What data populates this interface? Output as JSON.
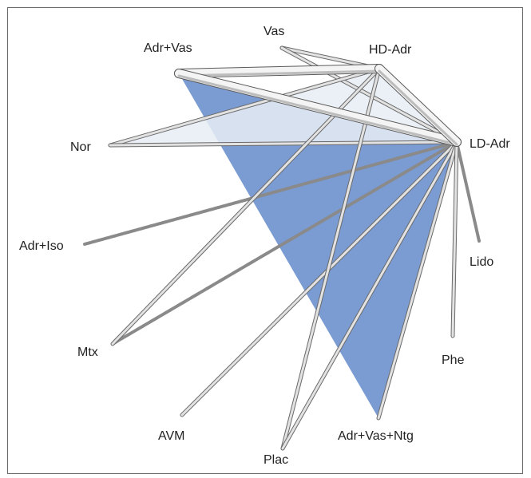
{
  "diagram": {
    "type": "network-meta-analysis-graph",
    "nodes": [
      {
        "id": "LD-Adr",
        "label": "LD-Adr"
      },
      {
        "id": "HD-Adr",
        "label": "HD-Adr"
      },
      {
        "id": "Vas",
        "label": "Vas"
      },
      {
        "id": "Adr+Vas",
        "label": "Adr+Vas"
      },
      {
        "id": "Nor",
        "label": "Nor"
      },
      {
        "id": "Adr+Iso",
        "label": "Adr+Iso"
      },
      {
        "id": "Mtx",
        "label": "Mtx"
      },
      {
        "id": "AVM",
        "label": "AVM"
      },
      {
        "id": "Plac",
        "label": "Plac"
      },
      {
        "id": "Adr+Vas+Ntg",
        "label": "Adr+Vas+Ntg"
      },
      {
        "id": "Phe",
        "label": "Phe"
      },
      {
        "id": "Lido",
        "label": "Lido"
      }
    ],
    "edges": [
      {
        "from": "Adr+Vas",
        "to": "HD-Adr",
        "weight": "thick"
      },
      {
        "from": "Adr+Vas",
        "to": "LD-Adr",
        "weight": "thick"
      },
      {
        "from": "HD-Adr",
        "to": "LD-Adr",
        "weight": "thick"
      },
      {
        "from": "Vas",
        "to": "HD-Adr",
        "weight": "thin"
      },
      {
        "from": "Vas",
        "to": "LD-Adr",
        "weight": "thin"
      },
      {
        "from": "Nor",
        "to": "HD-Adr",
        "weight": "thin"
      },
      {
        "from": "Nor",
        "to": "LD-Adr",
        "weight": "thin"
      },
      {
        "from": "Adr+Iso",
        "to": "LD-Adr",
        "weight": "hairline"
      },
      {
        "from": "Mtx",
        "to": "HD-Adr",
        "weight": "thin"
      },
      {
        "from": "Mtx",
        "to": "LD-Adr",
        "weight": "hairline"
      },
      {
        "from": "AVM",
        "to": "LD-Adr",
        "weight": "thin"
      },
      {
        "from": "Plac",
        "to": "HD-Adr",
        "weight": "thin"
      },
      {
        "from": "Plac",
        "to": "LD-Adr",
        "weight": "thin"
      },
      {
        "from": "Adr+Vas+Ntg",
        "to": "LD-Adr",
        "weight": "thin"
      },
      {
        "from": "Phe",
        "to": "LD-Adr",
        "weight": "thin"
      },
      {
        "from": "Lido",
        "to": "LD-Adr",
        "weight": "hairline"
      }
    ],
    "loops": [
      {
        "nodes": [
          "Adr+Vas",
          "LD-Adr",
          "Adr+Vas+Ntg"
        ],
        "color": "#7b9bd3"
      },
      {
        "nodes": [
          "Nor",
          "HD-Adr",
          "LD-Adr"
        ],
        "color": "#e7edf4"
      }
    ]
  }
}
